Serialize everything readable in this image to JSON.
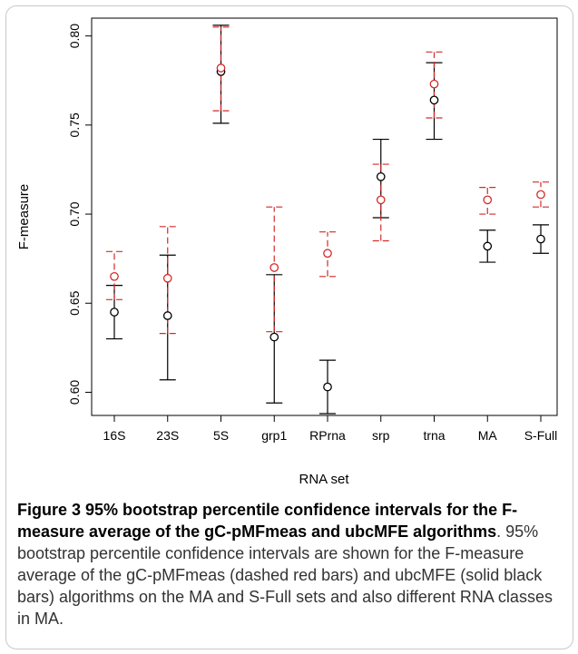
{
  "chart_data": {
    "type": "scatter",
    "xlabel": "RNA set",
    "ylabel": "F-measure",
    "categories": [
      "16S",
      "23S",
      "5S",
      "grp1",
      "RPrna",
      "srp",
      "trna",
      "MA",
      "S-Full"
    ],
    "ylim": [
      0.587,
      0.81
    ],
    "yticks": [
      "0.60",
      "0.65",
      "0.70",
      "0.75",
      "0.80"
    ],
    "grid": false,
    "series": [
      {
        "color": "#000000",
        "style": "solid",
        "points": [
          0.645,
          0.643,
          0.78,
          0.631,
          0.603,
          0.721,
          0.764,
          0.682,
          0.686
        ],
        "lower": [
          0.63,
          0.607,
          0.751,
          0.594,
          0.588,
          0.698,
          0.742,
          0.673,
          0.678
        ],
        "upper": [
          0.66,
          0.677,
          0.806,
          0.666,
          0.618,
          0.742,
          0.785,
          0.691,
          0.694
        ]
      },
      {
        "color": "#d42a2a",
        "style": "dashed",
        "points": [
          0.665,
          0.664,
          0.782,
          0.67,
          0.678,
          0.708,
          0.773,
          0.708,
          0.711
        ],
        "lower": [
          0.652,
          0.633,
          0.758,
          0.634,
          0.665,
          0.685,
          0.754,
          0.7,
          0.704
        ],
        "upper": [
          0.679,
          0.693,
          0.805,
          0.704,
          0.69,
          0.728,
          0.791,
          0.715,
          0.718
        ]
      }
    ]
  },
  "caption": {
    "title": "Figure 3 95% bootstrap percentile confidence intervals for the F-measure average of the gC-pMFmeas and ubcMFE algorithms",
    "body": ". 95% bootstrap percentile confidence intervals are shown for the F-measure average of the gC-pMFmeas (dashed red bars) and ubcMFE (solid black bars) algorithms on the MA and S-Full sets and also different RNA classes in MA."
  }
}
